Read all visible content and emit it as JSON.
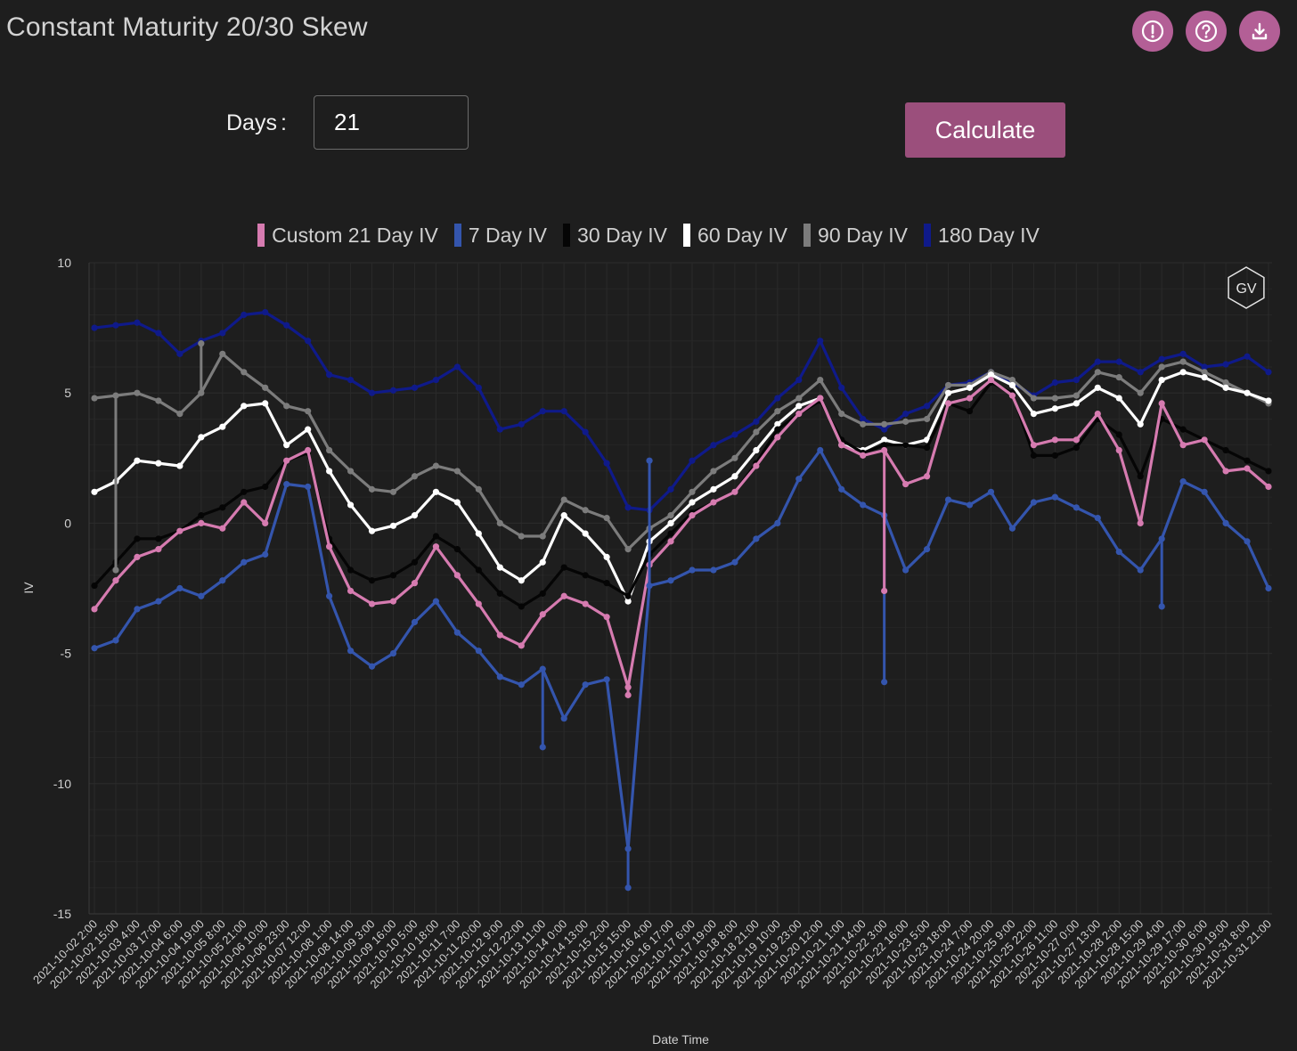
{
  "header": {
    "title": "Constant Maturity 20/30 Skew",
    "icons": [
      "alert-icon",
      "help-icon",
      "download-icon"
    ],
    "accent_color": "#b35f96"
  },
  "controls": {
    "days_label": "Days",
    "days_colon": ":",
    "days_value": "21",
    "calculate_label": "Calculate",
    "button_color": "#9b4f7c"
  },
  "chart_data": {
    "type": "line",
    "title": "",
    "xlabel": "Date Time",
    "ylabel": "IV",
    "ylim": [
      -15,
      10
    ],
    "yticks": [
      10,
      5,
      0,
      -5,
      -10,
      -15
    ],
    "grid": true,
    "legend_position": "top-center",
    "watermark": "GV",
    "x": [
      "2021-10-02 2:00",
      "2021-10-02 15:00",
      "2021-10-03 4:00",
      "2021-10-03 17:00",
      "2021-10-04 6:00",
      "2021-10-04 19:00",
      "2021-10-05 8:00",
      "2021-10-05 21:00",
      "2021-10-06 10:00",
      "2021-10-06 23:00",
      "2021-10-07 12:00",
      "2021-10-08 1:00",
      "2021-10-08 14:00",
      "2021-10-09 3:00",
      "2021-10-09 16:00",
      "2021-10-10 5:00",
      "2021-10-10 18:00",
      "2021-10-11 7:00",
      "2021-10-11 20:00",
      "2021-10-12 9:00",
      "2021-10-12 22:00",
      "2021-10-13 11:00",
      "2021-10-14 0:00",
      "2021-10-14 13:00",
      "2021-10-15 2:00",
      "2021-10-15 15:00",
      "2021-10-16 4:00",
      "2021-10-16 17:00",
      "2021-10-17 6:00",
      "2021-10-17 19:00",
      "2021-10-18 8:00",
      "2021-10-18 21:00",
      "2021-10-19 10:00",
      "2021-10-19 23:00",
      "2021-10-20 12:00",
      "2021-10-21 1:00",
      "2021-10-21 14:00",
      "2021-10-22 3:00",
      "2021-10-22 16:00",
      "2021-10-23 5:00",
      "2021-10-23 18:00",
      "2021-10-24 7:00",
      "2021-10-24 20:00",
      "2021-10-25 9:00",
      "2021-10-25 22:00",
      "2021-10-26 11:00",
      "2021-10-27 0:00",
      "2021-10-27 13:00",
      "2021-10-28 2:00",
      "2021-10-28 15:00",
      "2021-10-29 4:00",
      "2021-10-29 17:00",
      "2021-10-30 6:00",
      "2021-10-30 19:00",
      "2021-10-31 8:00",
      "2021-10-31 21:00"
    ],
    "series": [
      {
        "name": "180 Day IV",
        "color": "#0f1a8a",
        "values": [
          7.5,
          7.6,
          7.7,
          7.3,
          6.5,
          7.0,
          7.3,
          8.0,
          8.1,
          7.6,
          7.0,
          5.7,
          5.5,
          5.0,
          5.1,
          5.2,
          5.5,
          6.0,
          5.2,
          3.6,
          3.8,
          4.3,
          4.3,
          3.5,
          2.3,
          0.6,
          0.5,
          1.3,
          2.4,
          3.0,
          3.4,
          3.9,
          4.8,
          5.5,
          7.0,
          5.2,
          4.0,
          3.6,
          4.2,
          4.5,
          5.3,
          5.4,
          5.8,
          5.4,
          4.9,
          5.4,
          5.5,
          6.2,
          6.2,
          5.8,
          6.3,
          6.5,
          6.0,
          6.1,
          6.4,
          5.8
        ]
      },
      {
        "name": "90 Day IV",
        "color": "#7c7c7c",
        "values": [
          4.8,
          4.9,
          5.0,
          4.7,
          4.2,
          5.0,
          6.5,
          5.8,
          5.2,
          4.5,
          4.3,
          2.8,
          2.0,
          1.3,
          1.2,
          1.8,
          2.2,
          2.0,
          1.3,
          0.0,
          -0.5,
          -0.5,
          0.9,
          0.5,
          0.2,
          -1.0,
          -0.2,
          0.3,
          1.2,
          2.0,
          2.5,
          3.5,
          4.3,
          4.8,
          5.5,
          4.2,
          3.8,
          3.8,
          3.9,
          4.0,
          5.3,
          5.3,
          5.8,
          5.5,
          4.8,
          4.8,
          4.9,
          5.8,
          5.6,
          5.0,
          6.0,
          6.2,
          5.8,
          5.4,
          5.0,
          4.6
        ]
      },
      {
        "name": "60 Day IV",
        "color": "#ffffff",
        "values": [
          1.2,
          1.6,
          2.4,
          2.3,
          2.2,
          3.3,
          3.7,
          4.5,
          4.6,
          3.0,
          3.6,
          2.0,
          0.7,
          -0.3,
          -0.1,
          0.3,
          1.2,
          0.8,
          -0.4,
          -1.7,
          -2.2,
          -1.5,
          0.3,
          -0.4,
          -1.3,
          -3.0,
          -0.7,
          0.0,
          0.8,
          1.3,
          1.8,
          2.8,
          3.8,
          4.5,
          4.8,
          3.0,
          2.8,
          3.2,
          3.0,
          3.2,
          5.0,
          5.2,
          5.7,
          5.3,
          4.2,
          4.4,
          4.6,
          5.2,
          4.8,
          3.8,
          5.5,
          5.8,
          5.6,
          5.2,
          5.0,
          4.7
        ]
      },
      {
        "name": "30 Day IV",
        "color": "#050505",
        "values": [
          -2.4,
          -1.5,
          -0.6,
          -0.6,
          -0.3,
          0.3,
          0.6,
          1.2,
          1.4,
          2.4,
          2.7,
          -0.6,
          -1.8,
          -2.2,
          -2.0,
          -1.5,
          -0.5,
          -1.0,
          -1.8,
          -2.7,
          -3.2,
          -2.7,
          -1.7,
          -2.0,
          -2.3,
          -2.8,
          -1.2,
          -0.4,
          0.4,
          0.8,
          1.2,
          2.3,
          3.6,
          4.2,
          4.7,
          3.2,
          2.7,
          3.0,
          3.0,
          2.9,
          4.6,
          4.3,
          5.4,
          5.0,
          2.6,
          2.6,
          2.9,
          4.0,
          3.4,
          1.8,
          4.0,
          3.6,
          3.2,
          2.8,
          2.4,
          2.0
        ]
      },
      {
        "name": "Custom 21 Day IV",
        "color": "#d67bb0",
        "values": [
          -3.3,
          -2.2,
          -1.3,
          -1.0,
          -0.3,
          0.0,
          -0.2,
          0.8,
          0.0,
          2.4,
          2.8,
          -0.9,
          -2.6,
          -3.1,
          -3.0,
          -2.3,
          -0.9,
          -2.0,
          -3.1,
          -4.3,
          -4.7,
          -3.5,
          -2.8,
          -3.1,
          -3.6,
          -6.3,
          -1.6,
          -0.7,
          0.3,
          0.8,
          1.2,
          2.2,
          3.3,
          4.2,
          4.8,
          3.0,
          2.6,
          2.8,
          1.5,
          1.8,
          4.6,
          4.8,
          5.5,
          4.9,
          3.0,
          3.2,
          3.2,
          4.2,
          2.8,
          0.0,
          4.6,
          3.0,
          3.2,
          2.0,
          2.1,
          1.4
        ]
      },
      {
        "name": "7 Day IV",
        "color": "#3455ad",
        "values": [
          -4.8,
          -4.5,
          -3.3,
          -3.0,
          -2.5,
          -2.8,
          -2.2,
          -1.5,
          -1.2,
          1.5,
          1.4,
          -2.8,
          -4.9,
          -5.5,
          -5.0,
          -3.8,
          -3.0,
          -4.2,
          -4.9,
          -5.9,
          -6.2,
          -5.6,
          -7.5,
          -6.2,
          -6.0,
          -12.5,
          -2.4,
          -2.2,
          -1.8,
          -1.8,
          -1.5,
          -0.6,
          0.0,
          1.7,
          2.8,
          1.3,
          0.7,
          0.3,
          -1.8,
          -1.0,
          0.9,
          0.7,
          1.2,
          -0.2,
          0.8,
          1.0,
          0.6,
          0.2,
          -1.1,
          -1.8,
          -0.6,
          1.6,
          1.2,
          0.0,
          -0.7,
          -2.5
        ]
      }
    ],
    "spikes": [
      {
        "series": "7 Day IV",
        "x": "2021-10-15 15:00",
        "y": -14.0
      },
      {
        "series": "7 Day IV",
        "x": "2021-10-16 4:00",
        "y": 2.4
      },
      {
        "series": "7 Day IV",
        "x": "2021-10-22 3:00",
        "y": -6.1
      },
      {
        "series": "7 Day IV",
        "x": "2021-10-29 4:00",
        "y": -3.2
      },
      {
        "series": "7 Day IV",
        "x": "2021-10-13 11:00",
        "y": -8.6
      },
      {
        "series": "Custom 21 Day IV",
        "x": "2021-10-22 3:00",
        "y": -2.6
      },
      {
        "series": "Custom 21 Day IV",
        "x": "2021-10-15 15:00",
        "y": -6.6
      },
      {
        "series": "90 Day IV",
        "x": "2021-10-02 15:00",
        "y": -1.8
      },
      {
        "series": "90 Day IV",
        "x": "2021-10-04 19:00",
        "y": 6.9
      }
    ]
  }
}
